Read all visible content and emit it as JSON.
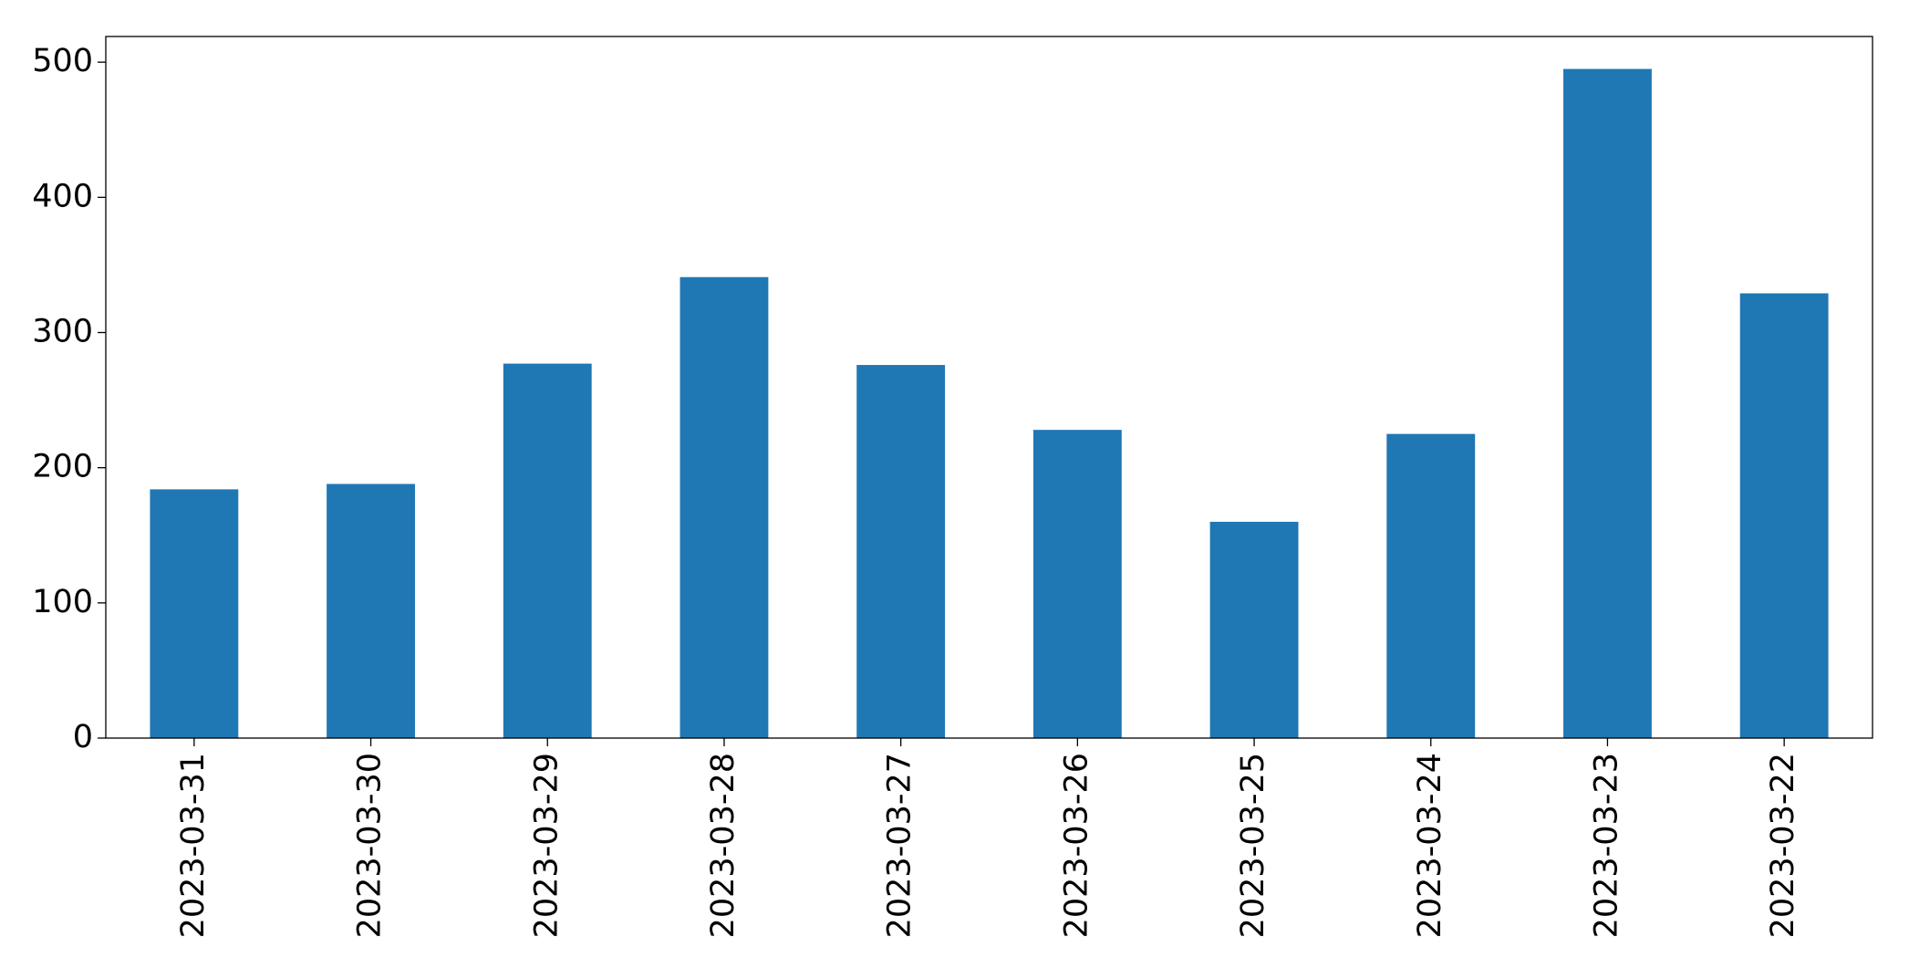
{
  "chart_data": {
    "type": "bar",
    "categories": [
      "2023-03-31",
      "2023-03-30",
      "2023-03-29",
      "2023-03-28",
      "2023-03-27",
      "2023-03-26",
      "2023-03-25",
      "2023-03-24",
      "2023-03-23",
      "2023-03-22"
    ],
    "values": [
      184,
      188,
      277,
      341,
      276,
      228,
      160,
      225,
      495,
      329
    ],
    "color": "#1f77b4",
    "ylim": [
      0,
      519
    ],
    "yticks": [
      0,
      100,
      200,
      300,
      400,
      500
    ],
    "grid": false
  }
}
